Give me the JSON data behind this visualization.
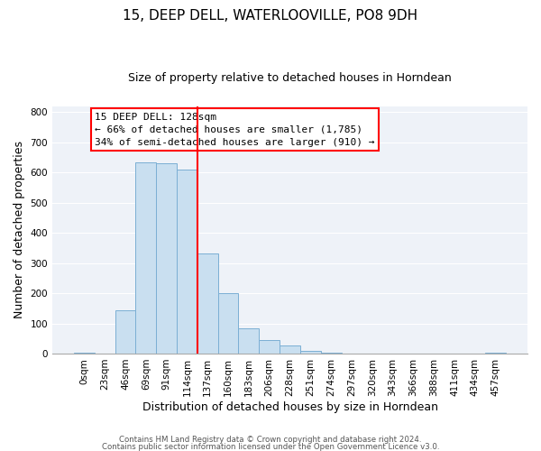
{
  "title": "15, DEEP DELL, WATERLOOVILLE, PO8 9DH",
  "subtitle": "Size of property relative to detached houses in Horndean",
  "xlabel": "Distribution of detached houses by size in Horndean",
  "ylabel": "Number of detached properties",
  "bar_labels": [
    "0sqm",
    "23sqm",
    "46sqm",
    "69sqm",
    "91sqm",
    "114sqm",
    "137sqm",
    "160sqm",
    "183sqm",
    "206sqm",
    "228sqm",
    "251sqm",
    "274sqm",
    "297sqm",
    "320sqm",
    "343sqm",
    "366sqm",
    "388sqm",
    "411sqm",
    "434sqm",
    "457sqm"
  ],
  "bar_values": [
    2,
    0,
    143,
    635,
    632,
    610,
    332,
    200,
    83,
    46,
    28,
    10,
    2,
    0,
    0,
    0,
    0,
    0,
    0,
    0,
    2
  ],
  "bar_color": "#c9dff0",
  "bar_edge_color": "#7bafd4",
  "vline_color": "red",
  "vline_label": "15 DEEP DELL: 128sqm",
  "annotation_smaller": "← 66% of detached houses are smaller (1,785)",
  "annotation_larger": "34% of semi-detached houses are larger (910) →",
  "annotation_box_color": "white",
  "annotation_box_edge": "red",
  "ylim": [
    0,
    820
  ],
  "yticks": [
    0,
    100,
    200,
    300,
    400,
    500,
    600,
    700,
    800
  ],
  "footer1": "Contains HM Land Registry data © Crown copyright and database right 2024.",
  "footer2": "Contains public sector information licensed under the Open Government Licence v3.0.",
  "bg_color": "#ffffff",
  "plot_bg_color": "#eef2f8",
  "grid_color": "#ffffff",
  "title_fontsize": 11,
  "subtitle_fontsize": 9,
  "ylabel_fontsize": 9,
  "xlabel_fontsize": 9,
  "tick_fontsize": 7.5,
  "ann_fontsize": 8
}
